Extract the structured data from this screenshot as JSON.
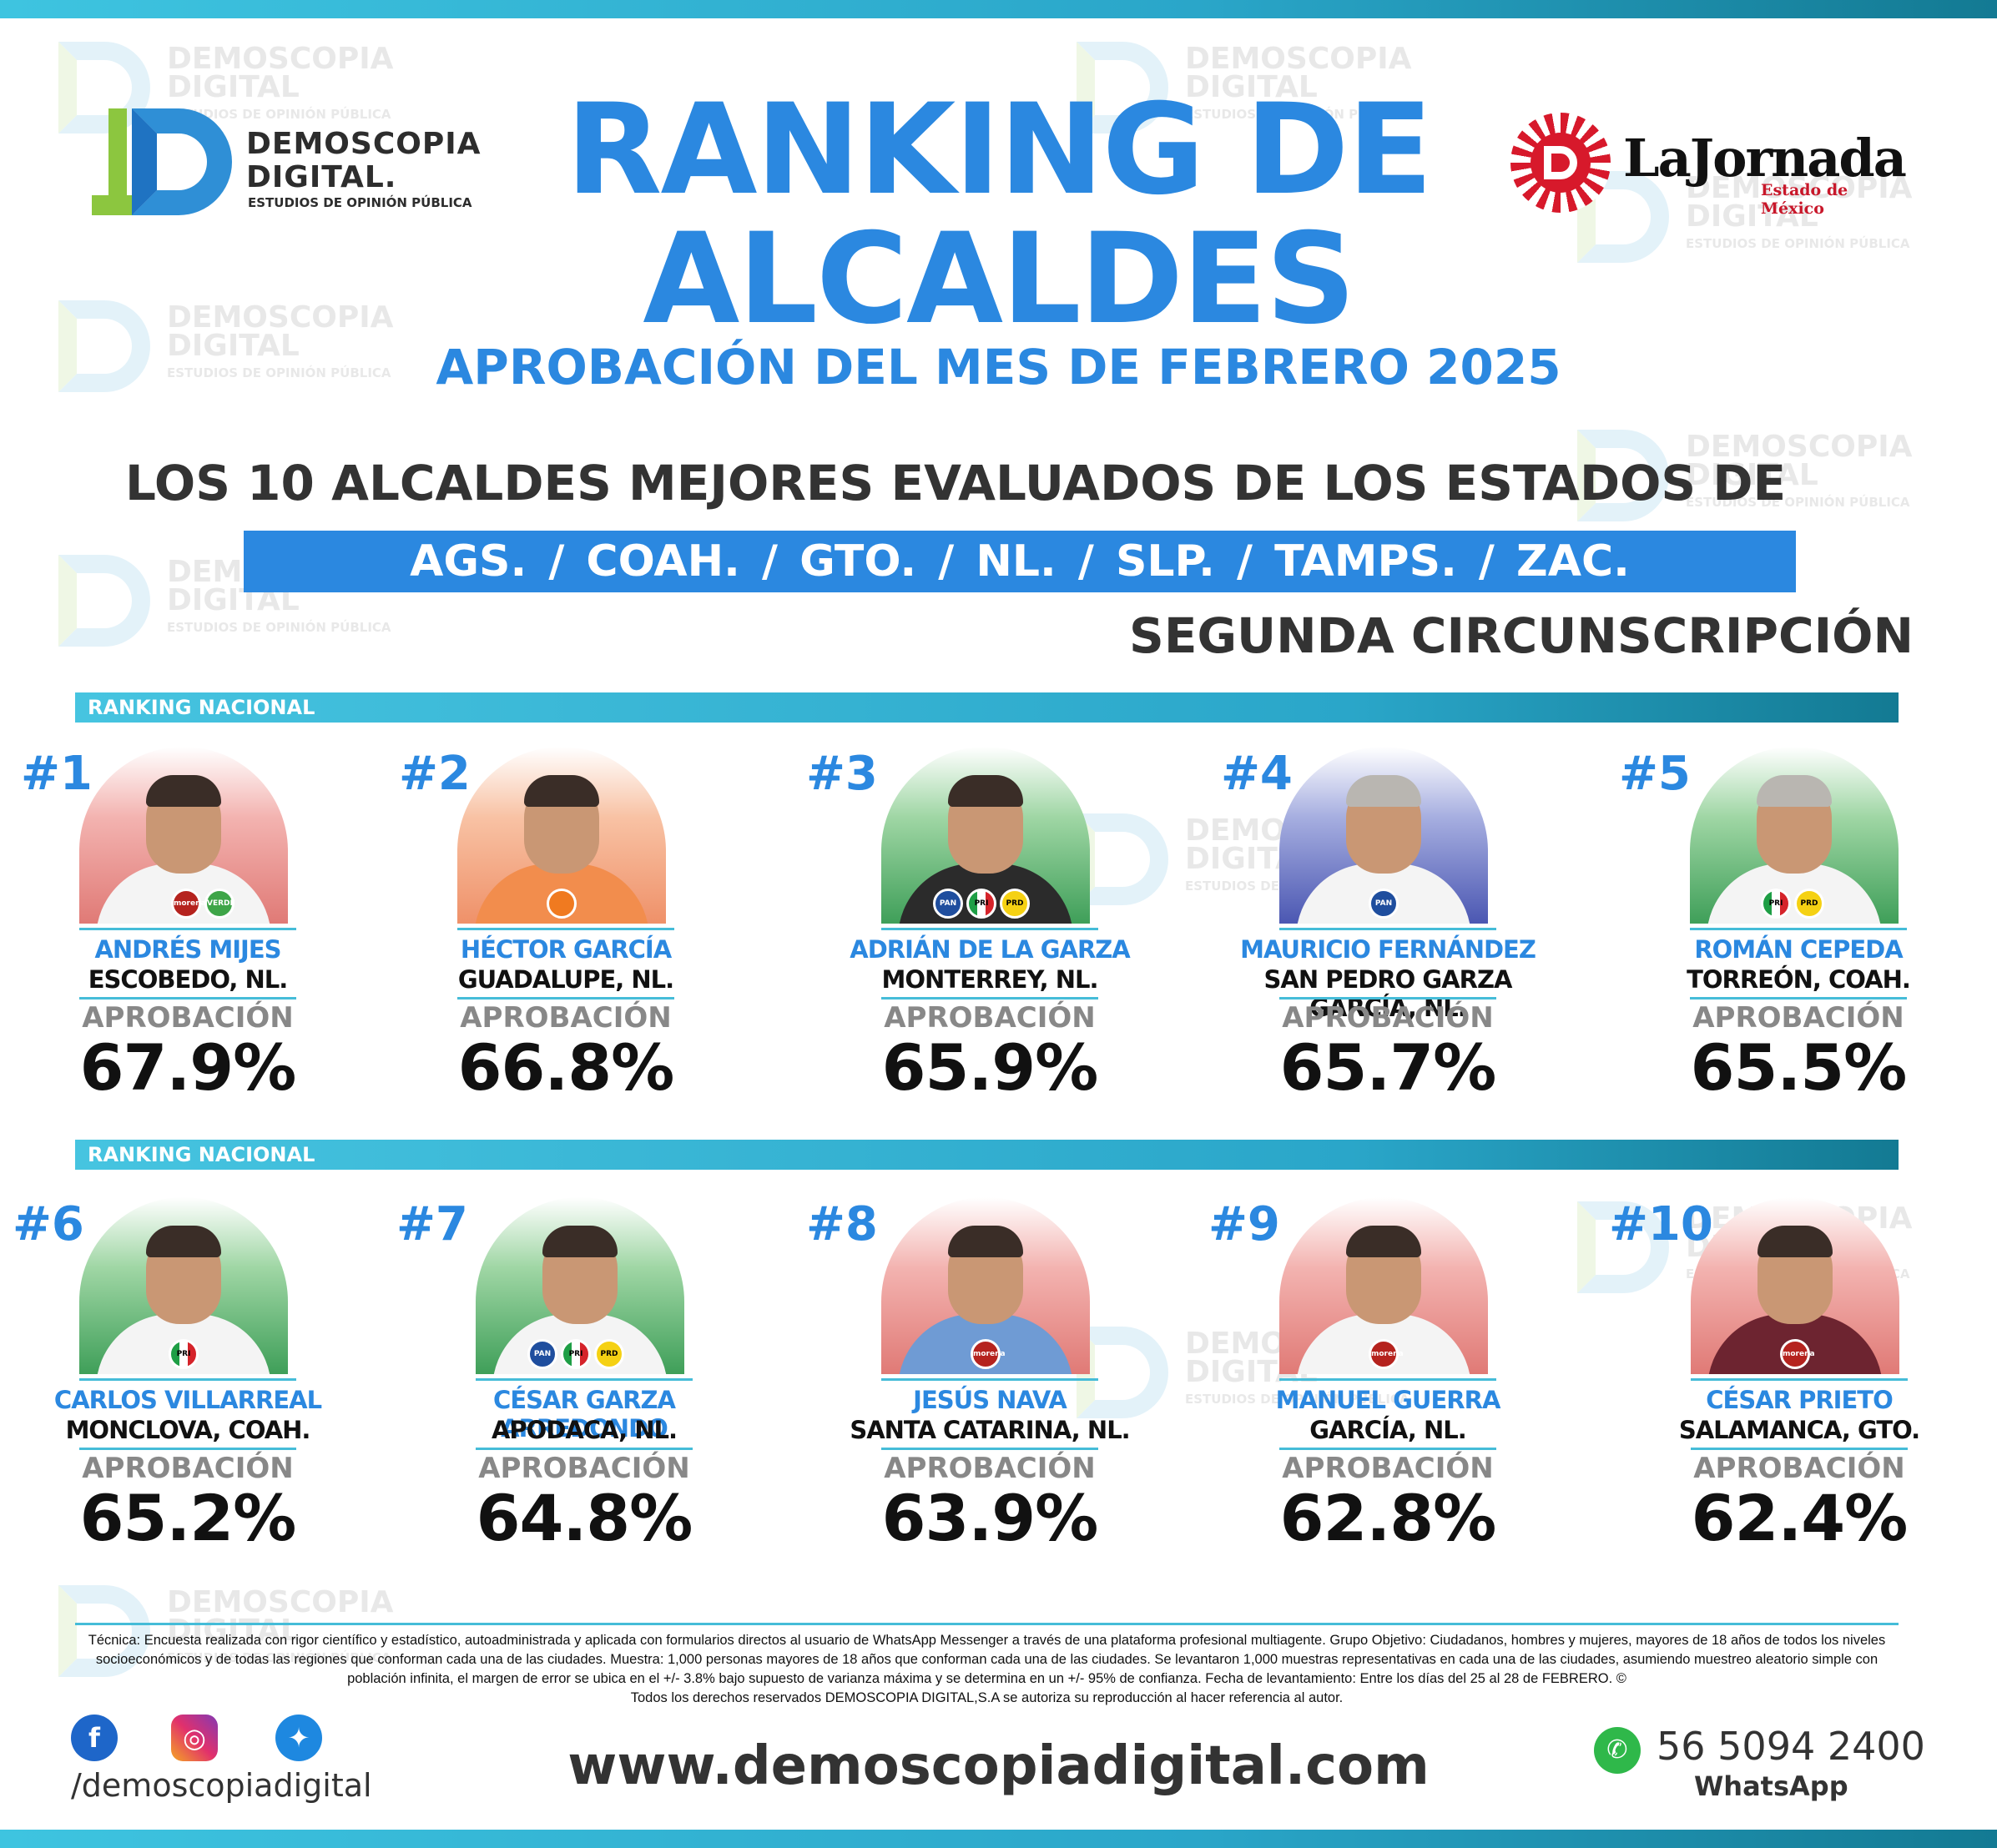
{
  "watermark": {
    "line1": "DEMOSCOPIA",
    "line2": "DIGITAL",
    "line3": "ESTUDIOS DE OPINIÓN PÚBLICA"
  },
  "logo_left": {
    "line1": "DEMOSCOPIA",
    "line2": "DIGITAL.",
    "line3": "ESTUDIOS DE OPINIÓN PÚBLICA"
  },
  "logo_right": {
    "name": "LaJornada",
    "sub": "Estado de México"
  },
  "header": {
    "title_line1": "RANKING DE",
    "title_line2": "ALCALDES",
    "subtitle": "APROBACIÓN DEL MES DE FEBRERO 2025",
    "heading": "LOS 10 ALCALDES MEJORES EVALUADOS DE LOS ESTADOS DE",
    "states": "AGS. /  COAH.  /  GTO.  /  NL.  /  SLP.  /  TAMPS.  /  ZAC.",
    "circunscripcion": "SEGUNDA CIRCUNSCRIPCIÓN"
  },
  "section_label": "RANKING NACIONAL",
  "approval_label": "APROBACIÓN",
  "colors": {
    "accent_blue": "#2b88e0",
    "bar_cyan": "#45bcd8",
    "text_dark": "#111111"
  },
  "mayors": [
    {
      "rank": "#1",
      "name": "ANDRÉS MIJES",
      "city": "ESCOBEDO, NL.",
      "approval": "67.9%",
      "parties": [
        "morena",
        "VERDE"
      ]
    },
    {
      "rank": "#2",
      "name": "HÉCTOR GARCÍA",
      "city": "GUADALUPE, NL.",
      "approval": "66.8%",
      "parties": [
        "MOVIMIENTO CIUDADANO"
      ]
    },
    {
      "rank": "#3",
      "name": "ADRIÁN DE LA GARZA",
      "city": "MONTERREY, NL.",
      "approval": "65.9%",
      "parties": [
        "PAN",
        "PRI",
        "PRD"
      ]
    },
    {
      "rank": "#4",
      "name": "MAURICIO FERNÁNDEZ",
      "city": "SAN PEDRO GARZA GARCÍA, NL.",
      "approval": "65.7%",
      "parties": [
        "PAN"
      ]
    },
    {
      "rank": "#5",
      "name": "ROMÁN CEPEDA",
      "city": "TORREÓN, COAH.",
      "approval": "65.5%",
      "parties": [
        "PRI",
        "PRD"
      ]
    },
    {
      "rank": "#6",
      "name": "CARLOS VILLARREAL",
      "city": "MONCLOVA, COAH.",
      "approval": "65.2%",
      "parties": [
        "PRI"
      ]
    },
    {
      "rank": "#7",
      "name": "CÉSAR GARZA ARREDONDO",
      "city": "APODACA, NL.",
      "approval": "64.8%",
      "parties": [
        "PAN",
        "PRI",
        "PRD"
      ]
    },
    {
      "rank": "#8",
      "name": "JESÚS NAVA",
      "city": "SANTA CATARINA, NL.",
      "approval": "63.9%",
      "parties": [
        "morena"
      ]
    },
    {
      "rank": "#9",
      "name": "MANUEL GUERRA",
      "city": "GARCÍA, NL.",
      "approval": "62.8%",
      "parties": [
        "morena"
      ]
    },
    {
      "rank": "#10",
      "name": "CÉSAR PRIETO",
      "city": "SALAMANCA, GTO.",
      "approval": "62.4%",
      "parties": [
        "morena"
      ]
    }
  ],
  "footer": {
    "technical": "Técnica: Encuesta realizada con rigor científico y estadístico, autoadministrada y aplicada con formularios directos al usuario de WhatsApp Messenger a través de una plataforma profesional multiagente. Grupo Objetivo: Ciudadanos, hombres y mujeres, mayores de 18 años de todos los niveles socioeconómicos y de todas las regiones que conforman cada una de las ciudades. Muestra: 1,000 personas mayores de 18 años que conforman cada una de las ciudades. Se levantaron 1,000 muestras representativas en cada una de las ciudades, asumiendo muestreo aleatorio simple con población infinita, el margen de error se ubica en el +/- 3.8% bajo supuesto de varianza máxima y se determina en un +/- 95% de confianza. Fecha de levantamiento: Entre los días del 25 al 28 de FEBRERO. ©",
    "rights": "Todos los derechos reservados DEMOSCOPIA DIGITAL,S.A se autoriza su reproducción al hacer referencia al autor.",
    "handle": "/demoscopiadigital",
    "website": "www.demoscopiadigital.com",
    "phone": "56 5094 2400",
    "whatsapp_label": "WhatsApp",
    "social_icons": [
      "facebook-icon",
      "instagram-icon",
      "twitter-icon",
      "whatsapp-icon"
    ]
  }
}
